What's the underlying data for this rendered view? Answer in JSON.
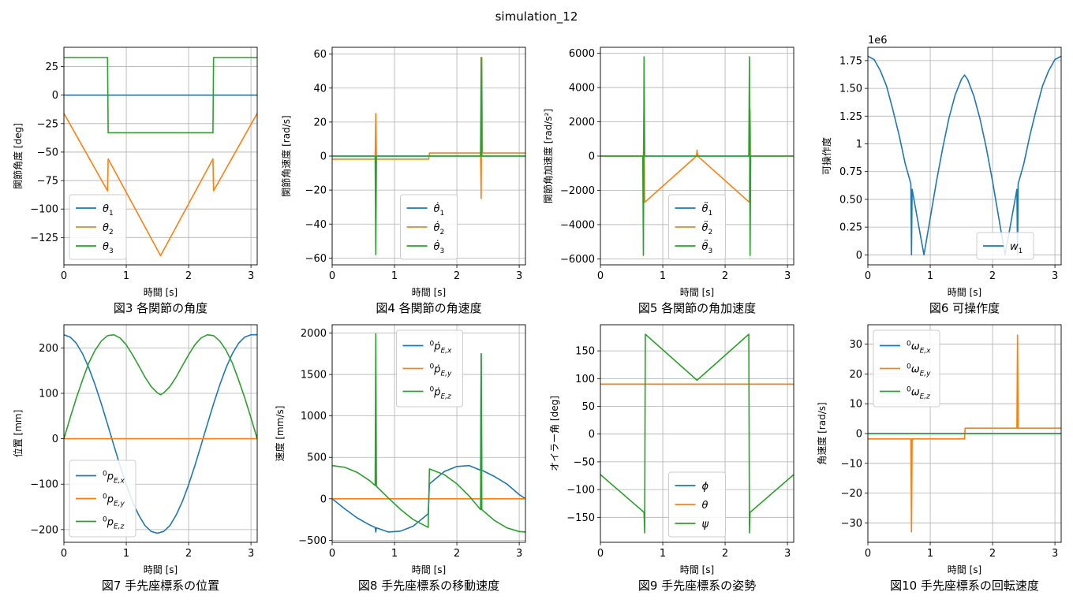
{
  "suptitle": "simulation_12",
  "colors": {
    "c1": "#1f77b4",
    "c2": "#ff7f0e",
    "c3": "#2ca02c",
    "grid": "#b0b0b0"
  },
  "chart_data": [
    {
      "type": "line",
      "caption": "図3 各関節の角度",
      "xlabel": "時間 [s]",
      "ylabel": "関節角度 [deg]",
      "xlim": [
        0,
        3.1
      ],
      "ylim": [
        -149,
        42
      ],
      "xticks": [
        0,
        1,
        2,
        3
      ],
      "yticks": [
        -125,
        -100,
        -75,
        -50,
        -25,
        0,
        25
      ],
      "grid": true,
      "legend": "lower-left",
      "series": [
        {
          "name": "θ1",
          "x": [
            0,
            3.1
          ],
          "y": [
            0,
            0
          ]
        },
        {
          "name": "θ2",
          "x": [
            0,
            0.7,
            0.71,
            1.55,
            2.39,
            2.4,
            3.1
          ],
          "y": [
            -16,
            -84,
            -56,
            -141,
            -56,
            -84,
            -16
          ]
        },
        {
          "name": "θ3",
          "x": [
            0,
            0.7,
            0.71,
            2.39,
            2.4,
            3.1
          ],
          "y": [
            33,
            33,
            -33,
            -33,
            33,
            33
          ]
        }
      ]
    },
    {
      "type": "line",
      "caption": "図4 各関節の角速度",
      "xlabel": "時間 [s]",
      "ylabel": "関節角速度 [rad/s]",
      "xlim": [
        0,
        3.1
      ],
      "ylim": [
        -64,
        64
      ],
      "xticks": [
        0,
        1,
        2,
        3
      ],
      "yticks": [
        -60,
        -40,
        -20,
        0,
        20,
        40,
        60
      ],
      "grid": true,
      "legend": "lower-center",
      "series": [
        {
          "name": "θ̇1",
          "x": [
            0,
            3.1
          ],
          "y": [
            0,
            0
          ]
        },
        {
          "name": "θ̇2",
          "x": [
            0,
            0.69,
            0.7,
            0.71,
            1.55,
            1.56,
            2.38,
            2.39,
            2.4,
            2.41,
            3.1
          ],
          "y": [
            -1.8,
            -1.8,
            25,
            -1.8,
            -1.8,
            1.8,
            1.8,
            -25,
            58,
            1.8,
            1.8
          ]
        },
        {
          "name": "θ̇3",
          "x": [
            0,
            0.69,
            0.7,
            0.71,
            2.38,
            2.39,
            2.4,
            3.1
          ],
          "y": [
            0,
            0,
            -58,
            0,
            0,
            58,
            0,
            0
          ]
        }
      ]
    },
    {
      "type": "line",
      "caption": "図5 各関節の角加速度",
      "xlabel": "時間 [s]",
      "ylabel": "関節角加速度 [rad/s²]",
      "xlim": [
        0,
        3.1
      ],
      "ylim": [
        -6350,
        6350
      ],
      "xticks": [
        0,
        1,
        2,
        3
      ],
      "yticks": [
        -6000,
        -4000,
        -2000,
        0,
        2000,
        4000,
        6000
      ],
      "grid": true,
      "legend": "lower-center",
      "series": [
        {
          "name": "θ̈1",
          "x": [
            0,
            3.1
          ],
          "y": [
            0,
            0
          ]
        },
        {
          "name": "θ̈2",
          "x": [
            0,
            0.69,
            0.7,
            0.71,
            1.54,
            1.55,
            1.56,
            2.39,
            2.4,
            2.41,
            3.1
          ],
          "y": [
            0,
            0,
            2700,
            -2700,
            0,
            350,
            0,
            -2700,
            2700,
            0,
            0
          ]
        },
        {
          "name": "θ̈3",
          "x": [
            0,
            0.68,
            0.69,
            0.7,
            0.71,
            2.38,
            2.39,
            2.4,
            2.41,
            3.1
          ],
          "y": [
            0,
            0,
            -5800,
            5800,
            0,
            0,
            5800,
            -5800,
            0,
            0
          ]
        }
      ]
    },
    {
      "type": "line",
      "caption": "図6 可操作度",
      "xlabel": "時間 [s]",
      "ylabel": "可操作度",
      "offset_text": "1e6",
      "xlim": [
        0,
        3.1
      ],
      "ylim": [
        -0.09,
        1.87
      ],
      "xticks": [
        0,
        1,
        2,
        3
      ],
      "yticks": [
        0,
        0.25,
        0.5,
        0.75,
        1.0,
        1.25,
        1.5,
        1.75
      ],
      "grid": true,
      "legend": "lower-right",
      "series": [
        {
          "name": "w1",
          "x": [
            0,
            0.1,
            0.2,
            0.3,
            0.4,
            0.5,
            0.6,
            0.69,
            0.7,
            0.71,
            0.8,
            0.9,
            1.0,
            1.1,
            1.2,
            1.3,
            1.4,
            1.5,
            1.55,
            1.6,
            1.7,
            1.8,
            1.9,
            2.0,
            2.1,
            2.2,
            2.3,
            2.39,
            2.4,
            2.41,
            2.5,
            2.6,
            2.7,
            2.8,
            2.9,
            3.0,
            3.1
          ],
          "y": [
            1.79,
            1.76,
            1.66,
            1.52,
            1.31,
            1.08,
            0.82,
            0.64,
            0,
            0.59,
            0.31,
            0.0,
            0.33,
            0.66,
            0.96,
            1.23,
            1.44,
            1.58,
            1.62,
            1.58,
            1.43,
            1.22,
            0.96,
            0.66,
            0.33,
            0.0,
            0.31,
            0.59,
            0,
            0.64,
            0.82,
            1.08,
            1.31,
            1.52,
            1.66,
            1.76,
            1.79
          ]
        }
      ]
    },
    {
      "type": "line",
      "caption": "図7 手先座標系の位置",
      "xlabel": "時間 [s]",
      "ylabel": "位置 [mm]",
      "xlim": [
        0,
        3.1
      ],
      "ylim": [
        -228,
        251
      ],
      "xticks": [
        0,
        1,
        2,
        3
      ],
      "yticks": [
        -200,
        -100,
        0,
        100,
        200
      ],
      "grid": true,
      "legend": "lower-left",
      "series": [
        {
          "name": "⁰p_{E,x}",
          "x": [
            0,
            0.1,
            0.2,
            0.3,
            0.4,
            0.5,
            0.6,
            0.7,
            0.8,
            0.9,
            1.0,
            1.1,
            1.2,
            1.3,
            1.4,
            1.5,
            1.55,
            1.6,
            1.7,
            1.8,
            1.9,
            2.0,
            2.1,
            2.2,
            2.3,
            2.4,
            2.5,
            2.6,
            2.7,
            2.8,
            2.9,
            3.0,
            3.1
          ],
          "y": [
            229,
            224,
            210,
            187,
            156,
            119,
            77,
            32,
            -14,
            -59,
            -101,
            -138,
            -168,
            -191,
            -204,
            -208,
            -206,
            -204,
            -191,
            -168,
            -138,
            -101,
            -59,
            -14,
            32,
            77,
            119,
            156,
            187,
            210,
            224,
            229,
            229
          ]
        },
        {
          "name": "⁰p_{E,y}",
          "x": [
            0,
            3.1
          ],
          "y": [
            0,
            0
          ]
        },
        {
          "name": "⁰p_{E,z}",
          "x": [
            0,
            0.1,
            0.2,
            0.3,
            0.4,
            0.5,
            0.6,
            0.7,
            0.8,
            0.9,
            1.0,
            1.1,
            1.2,
            1.3,
            1.4,
            1.5,
            1.55,
            1.6,
            1.7,
            1.8,
            1.9,
            2.0,
            2.1,
            2.2,
            2.3,
            2.4,
            2.5,
            2.6,
            2.7,
            2.8,
            2.9,
            3.0,
            3.1
          ],
          "y": [
            0,
            46,
            90,
            130,
            167,
            195,
            215,
            227,
            229,
            222,
            207,
            185,
            161,
            136,
            115,
            101,
            97,
            101,
            115,
            136,
            161,
            185,
            207,
            222,
            229,
            227,
            215,
            195,
            167,
            130,
            90,
            46,
            0
          ]
        }
      ]
    },
    {
      "type": "line",
      "caption": "図8 手先座標系の移動速度",
      "xlabel": "時間 [s]",
      "ylabel": "速度 [mm/s]",
      "xlim": [
        0,
        3.1
      ],
      "ylim": [
        -525,
        2100
      ],
      "xticks": [
        0,
        1,
        2,
        3
      ],
      "yticks": [
        -500,
        0,
        500,
        1000,
        1500,
        2000
      ],
      "grid": true,
      "legend": "upper-center",
      "series": [
        {
          "name": "⁰ṗ_{E,x}",
          "x": [
            0,
            0.2,
            0.4,
            0.6,
            0.69,
            0.7,
            0.71,
            0.9,
            1.1,
            1.3,
            1.54,
            1.56,
            1.8,
            2.0,
            2.2,
            2.38,
            2.39,
            2.4,
            2.6,
            2.8,
            3.0,
            3.1
          ],
          "y": [
            0,
            -120,
            -230,
            -315,
            -345,
            -400,
            -350,
            -400,
            -390,
            -330,
            -180,
            180,
            330,
            390,
            400,
            345,
            1750,
            345,
            270,
            180,
            50,
            0
          ]
        },
        {
          "name": "⁰ṗ_{E,y}",
          "x": [
            0,
            3.1
          ],
          "y": [
            0,
            0
          ]
        },
        {
          "name": "⁰ṗ_{E,z}",
          "x": [
            0,
            0.2,
            0.4,
            0.6,
            0.69,
            0.7,
            0.71,
            0.9,
            1.1,
            1.3,
            1.54,
            1.56,
            1.8,
            2.0,
            2.2,
            2.38,
            2.39,
            2.4,
            2.6,
            2.8,
            3.0,
            3.1
          ],
          "y": [
            400,
            380,
            320,
            220,
            160,
            1990,
            150,
            10,
            -130,
            -250,
            -345,
            360,
            290,
            180,
            30,
            -130,
            1750,
            -130,
            -260,
            -350,
            -395,
            -400
          ]
        }
      ]
    },
    {
      "type": "line",
      "caption": "図9 手先座標系の姿勢",
      "xlabel": "時間 [s]",
      "ylabel": "オイラー角 [deg]",
      "xlim": [
        0,
        3.1
      ],
      "ylim": [
        -195,
        197
      ],
      "xticks": [
        0,
        1,
        2,
        3
      ],
      "yticks": [
        -150,
        -100,
        -50,
        0,
        50,
        100,
        150
      ],
      "grid": true,
      "legend": "lower-center",
      "series": [
        {
          "name": "ϕ",
          "x": [
            0,
            3.1
          ],
          "y": [
            90,
            90
          ]
        },
        {
          "name": "θ",
          "x": [
            0,
            3.1
          ],
          "y": [
            90,
            90
          ]
        },
        {
          "name": "ψ",
          "x": [
            0,
            0.7,
            0.71,
            0.72,
            1.55,
            2.38,
            2.39,
            2.4,
            3.1
          ],
          "y": [
            -73,
            -141,
            -178,
            180,
            97,
            180,
            -178,
            -141,
            -73
          ]
        }
      ]
    },
    {
      "type": "line",
      "caption": "図10 手先座標系の回転速度",
      "xlabel": "時間 [s]",
      "ylabel": "角速度 [rad/s]",
      "xlim": [
        0,
        3.1
      ],
      "ylim": [
        -36.5,
        36.5
      ],
      "xticks": [
        0,
        1,
        2,
        3
      ],
      "yticks": [
        -30,
        -20,
        -10,
        0,
        10,
        20,
        30
      ],
      "grid": true,
      "legend": "upper-left",
      "series": [
        {
          "name": "⁰ω_{E,x}",
          "x": [
            0,
            3.1
          ],
          "y": [
            0,
            0
          ]
        },
        {
          "name": "⁰ω_{E,y}",
          "x": [
            0,
            0.69,
            0.7,
            0.71,
            1.55,
            1.56,
            2.39,
            2.4,
            2.41,
            3.1
          ],
          "y": [
            -1.8,
            -1.8,
            -33,
            -1.8,
            -1.8,
            1.8,
            1.8,
            33,
            1.8,
            1.8
          ]
        },
        {
          "name": "⁰ω_{E,z}",
          "x": [
            0,
            3.1
          ],
          "y": [
            0,
            0
          ]
        }
      ]
    }
  ]
}
